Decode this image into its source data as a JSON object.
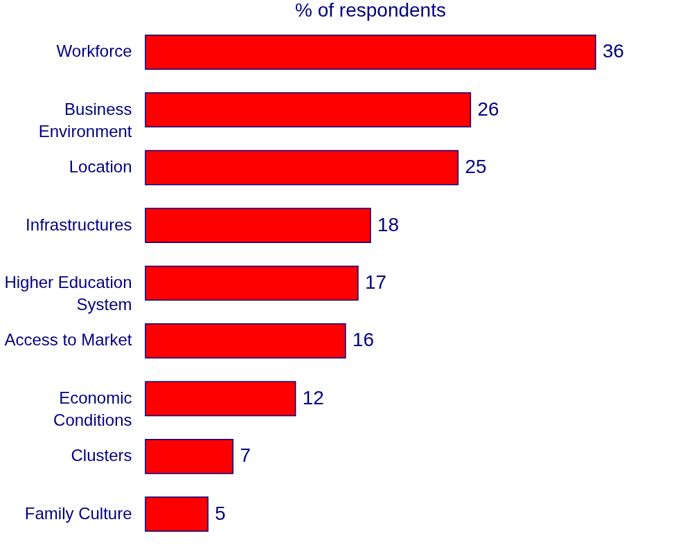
{
  "chart_data": {
    "type": "bar",
    "orientation": "horizontal",
    "title": "% of respondents",
    "categories": [
      "Workforce",
      "Business Environment",
      "Location",
      "Infrastructures",
      "Higher Education System",
      "Access to Market",
      "Economic Conditions",
      "Clusters",
      "Family Culture"
    ],
    "values": [
      36,
      26,
      25,
      18,
      17,
      16,
      12,
      7,
      5
    ],
    "color": "#ff0000",
    "data_labels": true
  }
}
